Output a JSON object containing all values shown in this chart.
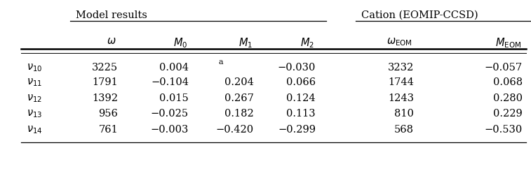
{
  "title_left": "Model results",
  "title_right": "Cation (EOMIP-CCSD)",
  "rows": [
    [
      "ν_{10}",
      "3225",
      "0.004",
      "a",
      "−0.030",
      "3232",
      "−0.057"
    ],
    [
      "ν_{11}",
      "1791",
      "−0.104",
      "0.204",
      "0.066",
      "1744",
      "0.068"
    ],
    [
      "ν_{12}",
      "1392",
      "0.015",
      "0.267",
      "0.124",
      "1243",
      "0.280"
    ],
    [
      "ν_{13}",
      "956",
      "−0.025",
      "0.182",
      "0.113",
      "810",
      "0.229"
    ],
    [
      "ν_{14}",
      "761",
      "−0.003",
      "−0.420",
      "−0.299",
      "568",
      "−0.530"
    ]
  ],
  "bg_color": "#ffffff",
  "fontsize": 10.5
}
